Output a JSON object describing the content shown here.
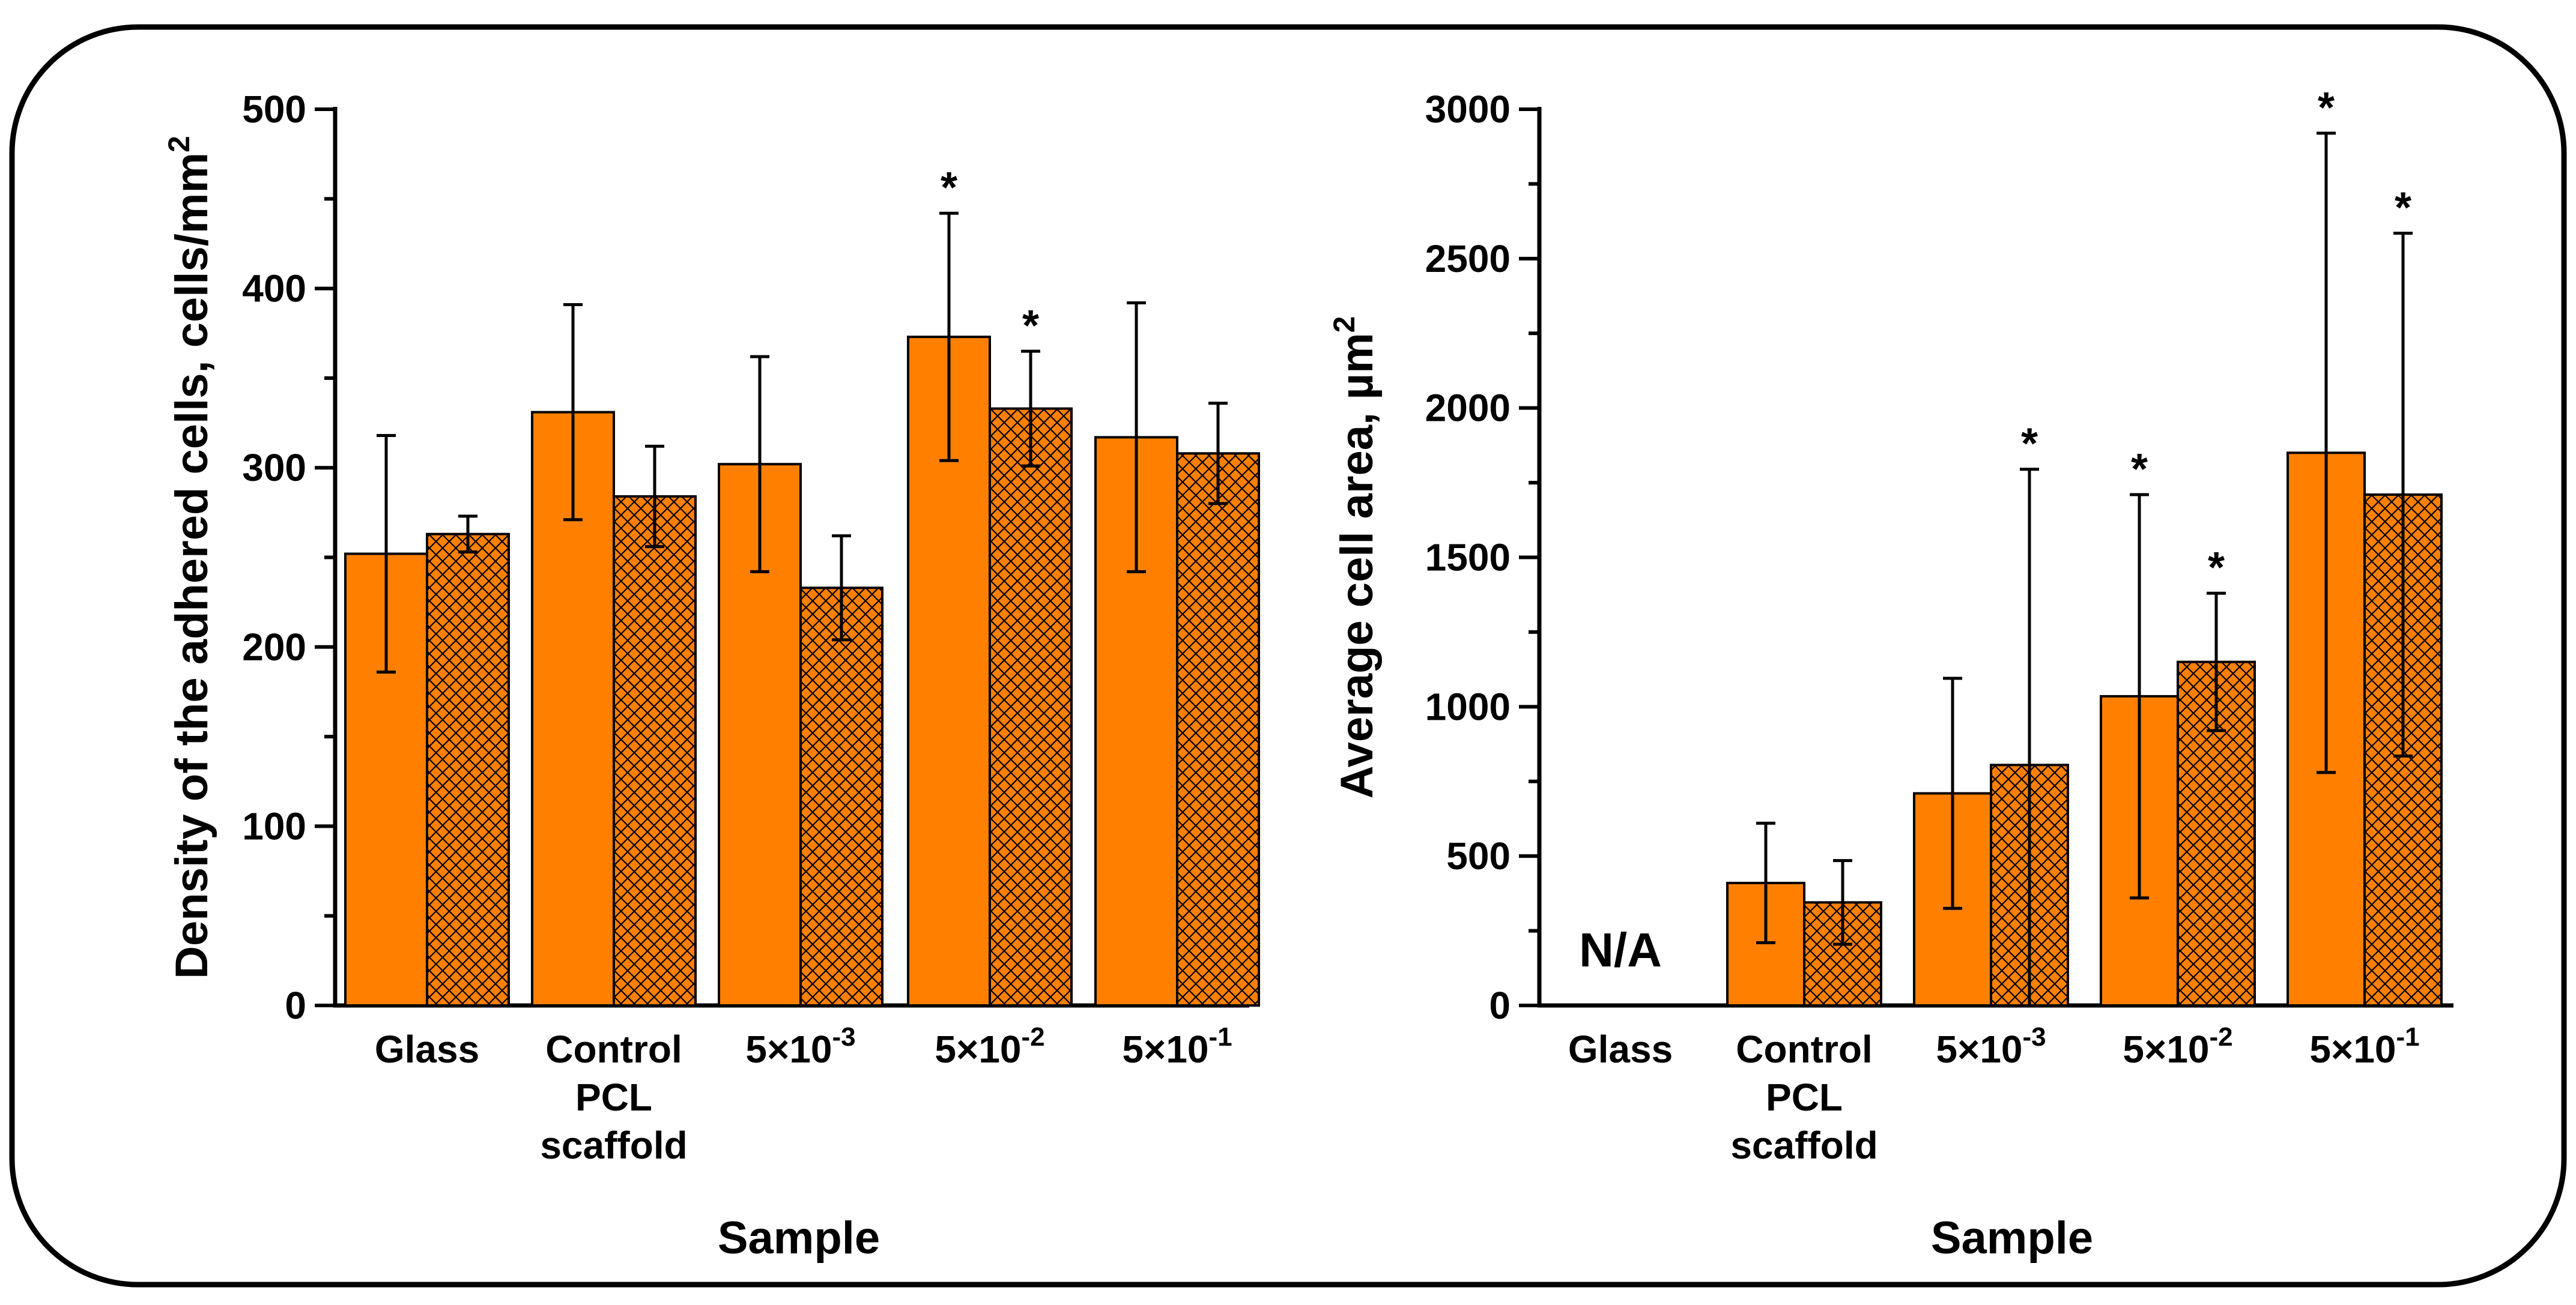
{
  "colors": {
    "bar_fill": "#ff8000",
    "hatch_stroke": "#000000",
    "stroke": "#000000"
  },
  "chart_data": [
    {
      "type": "bar",
      "xlabel": "Sample",
      "ylabel": "Density of the adhered cells, cells/mm",
      "ylabel_sup": "2",
      "ylim": [
        0,
        500
      ],
      "yticks": [
        "0",
        "100",
        "200",
        "300",
        "400",
        "500"
      ],
      "ytick_values": [
        0,
        100,
        200,
        300,
        400,
        500
      ],
      "categories": [
        {
          "lines": [
            "Glass"
          ]
        },
        {
          "lines": [
            "Control",
            "PCL",
            "scaffold"
          ]
        },
        {
          "base": "5×10",
          "exp": "-3"
        },
        {
          "base": "5×10",
          "exp": "-2"
        },
        {
          "base": "5×10",
          "exp": "-1"
        }
      ],
      "series": [
        {
          "name": "solid",
          "pattern": "solid",
          "values": [
            252,
            331,
            302,
            373,
            317
          ],
          "errors": [
            66,
            60,
            60,
            69,
            75
          ],
          "significant": [
            false,
            false,
            false,
            true,
            false
          ]
        },
        {
          "name": "hatched",
          "pattern": "crosshatch",
          "values": [
            263,
            284,
            233,
            333,
            308
          ],
          "errors": [
            10,
            28,
            29,
            32,
            28
          ],
          "significant": [
            false,
            false,
            false,
            true,
            false
          ]
        }
      ],
      "annotations": []
    },
    {
      "type": "bar",
      "xlabel": "Sample",
      "ylabel": "Average cell area, µm",
      "ylabel_sup": "2",
      "ylim": [
        0,
        3000
      ],
      "yticks": [
        "0",
        "500",
        "1000",
        "1500",
        "2000",
        "2500",
        "3000"
      ],
      "ytick_values": [
        0,
        500,
        1000,
        1500,
        2000,
        2500,
        3000
      ],
      "categories": [
        {
          "lines": [
            "Glass"
          ]
        },
        {
          "lines": [
            "Control",
            "PCL",
            "scaffold"
          ]
        },
        {
          "base": "5×10",
          "exp": "-3"
        },
        {
          "base": "5×10",
          "exp": "-2"
        },
        {
          "base": "5×10",
          "exp": "-1"
        }
      ],
      "series": [
        {
          "name": "solid",
          "pattern": "solid",
          "values": [
            null,
            410,
            710,
            1035,
            1850
          ],
          "errors": [
            null,
            200,
            385,
            675,
            1070
          ],
          "significant": [
            false,
            false,
            false,
            true,
            true
          ]
        },
        {
          "name": "hatched",
          "pattern": "crosshatch",
          "values": [
            null,
            345,
            805,
            1150,
            1710
          ],
          "errors": [
            null,
            140,
            990,
            230,
            875
          ],
          "significant": [
            false,
            false,
            true,
            true,
            true
          ]
        }
      ],
      "annotations": [
        {
          "category": 0,
          "text": "N/A"
        }
      ]
    }
  ]
}
